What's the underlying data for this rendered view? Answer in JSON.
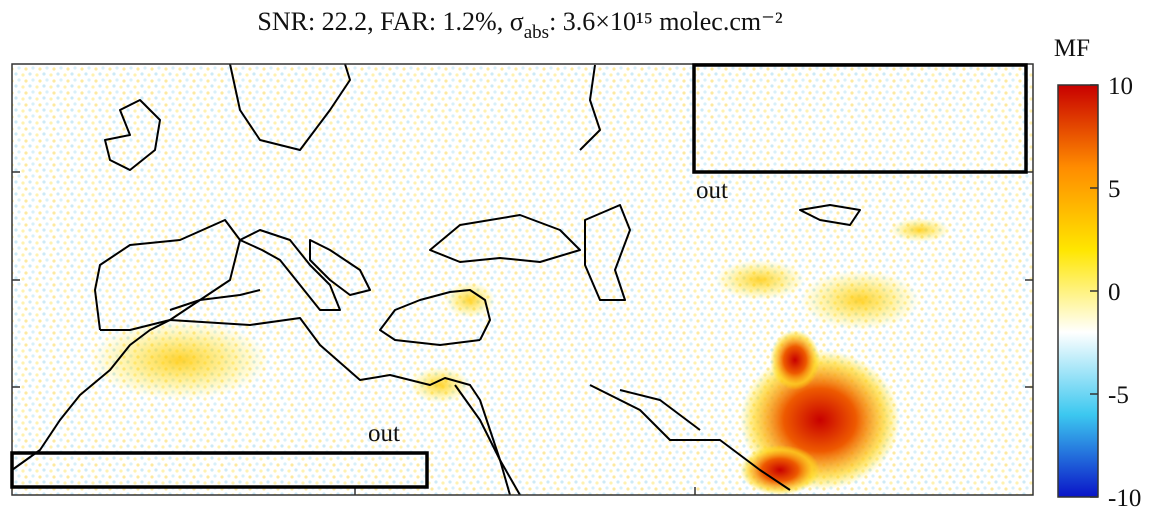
{
  "title": {
    "prefix": "SNR: 22.2,  FAR: 1.2%,  σ",
    "subscript": "abs",
    "suffix": ": 3.6×10¹⁵ molec.cm⁻²"
  },
  "colorbar": {
    "label": "MF",
    "lim": [
      -10,
      10
    ],
    "ticks": [
      10,
      5,
      0,
      -5,
      -10
    ],
    "colors": [
      "#0a14c8",
      "#3cc8f0",
      "#ffffff",
      "#ffe600",
      "#ff8c00",
      "#c80000"
    ]
  },
  "annotations": [
    "out",
    "out"
  ]
}
